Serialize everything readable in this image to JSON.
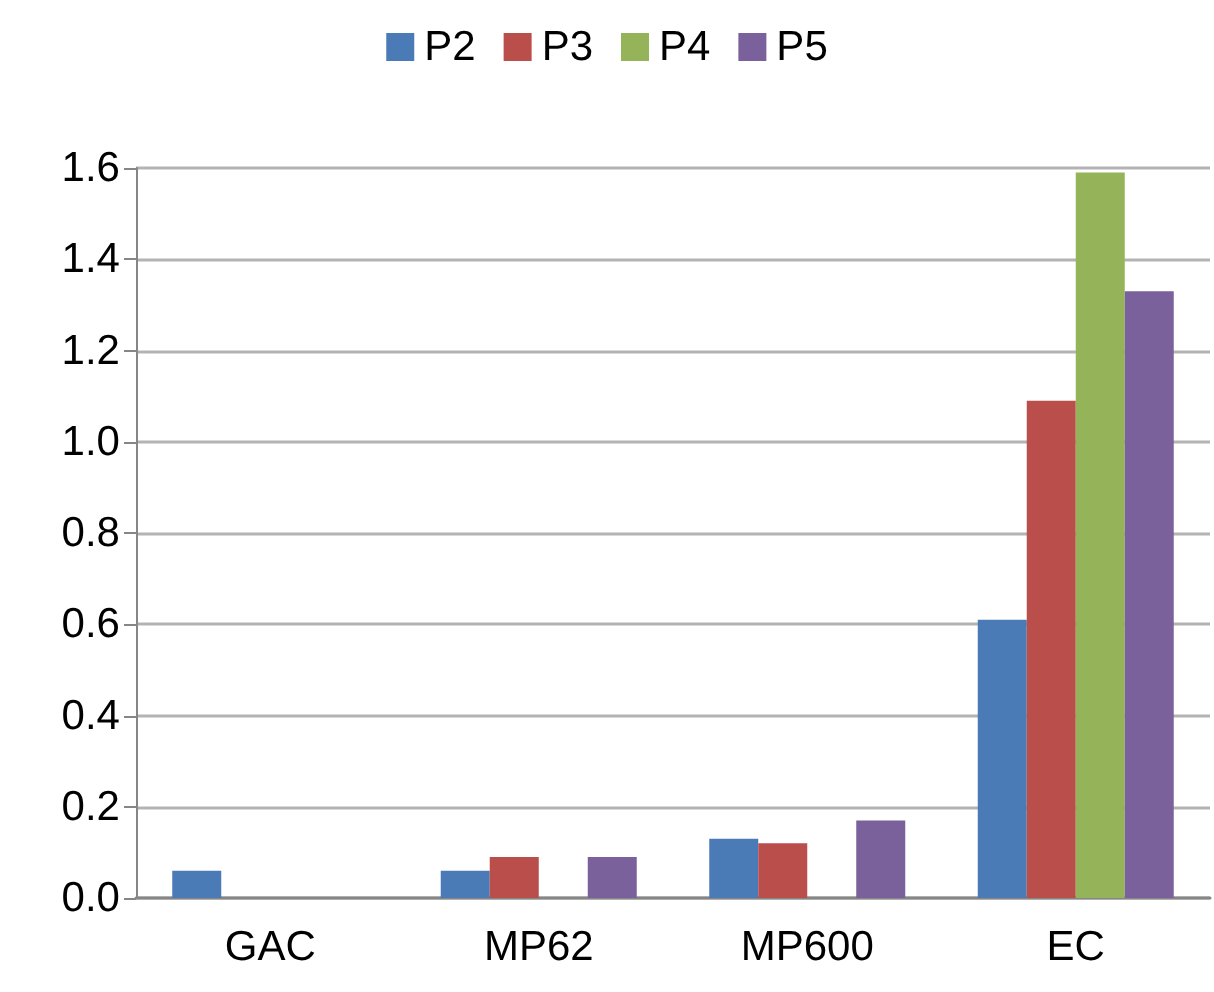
{
  "chart_data": {
    "type": "bar",
    "categories": [
      "GAC",
      "MP62",
      "MP600",
      "EC"
    ],
    "series": [
      {
        "name": "P2",
        "color": "#4a7bb6",
        "values": [
          0.06,
          0.06,
          0.13,
          0.61
        ]
      },
      {
        "name": "P3",
        "color": "#b94e4b",
        "values": [
          null,
          0.09,
          0.12,
          1.09
        ]
      },
      {
        "name": "P4",
        "color": "#95b45a",
        "values": [
          null,
          null,
          null,
          1.59
        ]
      },
      {
        "name": "P5",
        "color": "#7b619b",
        "values": [
          null,
          0.09,
          0.17,
          1.33
        ]
      }
    ],
    "ylim": [
      0,
      1.6
    ],
    "yticks": [
      {
        "value": 0,
        "label": "0.0"
      },
      0.2,
      0.4,
      0.6,
      0.8,
      {
        "value": 1,
        "label": "1.0"
      },
      1.2,
      1.4,
      1.6
    ],
    "grid": "y",
    "legend": "top"
  }
}
